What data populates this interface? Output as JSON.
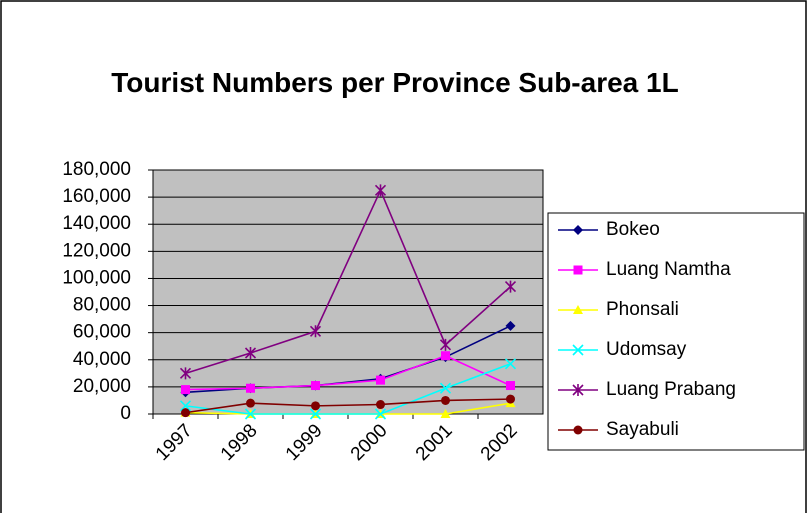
{
  "chart_data": {
    "type": "line",
    "title": "Tourist Numbers per Province Sub-area 1L",
    "categories": [
      "1997",
      "1998",
      "1999",
      "2000",
      "2001",
      "2002"
    ],
    "series": [
      {
        "name": "Bokeo",
        "color": "#000080",
        "marker": "diamond",
        "values": [
          16000,
          19000,
          21000,
          26000,
          42000,
          65000
        ]
      },
      {
        "name": "Luang Namtha",
        "color": "#ff00ff",
        "marker": "square",
        "values": [
          18000,
          19000,
          21000,
          25000,
          43000,
          21000
        ]
      },
      {
        "name": "Phonsali",
        "color": "#ffff00",
        "marker": "triangle",
        "values": [
          1000,
          0,
          0,
          0,
          0,
          8000
        ]
      },
      {
        "name": "Udomsay",
        "color": "#00ffff",
        "marker": "x",
        "values": [
          6000,
          0,
          0,
          0,
          19000,
          37000
        ]
      },
      {
        "name": "Luang Prabang",
        "color": "#800080",
        "marker": "asterisk",
        "values": [
          30000,
          45000,
          61000,
          165000,
          51000,
          94000
        ]
      },
      {
        "name": "Sayabuli",
        "color": "#800000",
        "marker": "circle",
        "values": [
          1000,
          8000,
          6000,
          7000,
          10000,
          11000
        ]
      }
    ],
    "ylim": [
      0,
      180000
    ],
    "yticks": [
      0,
      {
        "value": 20000,
        "label": "20,000"
      },
      {
        "value": 40000,
        "label": "40,000"
      },
      {
        "value": 60000,
        "label": "60,000"
      },
      {
        "value": 80000,
        "label": "80,000"
      },
      {
        "value": 100000,
        "label": "100,000"
      },
      {
        "value": 120000,
        "label": "120,000"
      },
      {
        "value": 140000,
        "label": "140,000"
      },
      {
        "value": 160000,
        "label": "160,000"
      },
      {
        "value": 180000,
        "label": "180,000"
      }
    ],
    "grid": true,
    "legend": "right",
    "plot_background": "#c0c0c0"
  }
}
